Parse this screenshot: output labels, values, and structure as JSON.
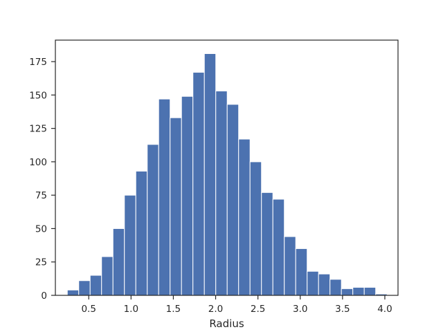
{
  "chart_data": {
    "type": "bar",
    "xlabel": "Radius",
    "ylabel": "",
    "title": "",
    "grid": false,
    "xlim": [
      0.1056,
      4.1557
    ],
    "ylim": [
      0,
      191.1
    ],
    "x_ticks": [
      0.5,
      1.0,
      1.5,
      2.0,
      2.5,
      3.0,
      3.5,
      4.0
    ],
    "x_tick_labels": [
      "0.5",
      "1.0",
      "1.5",
      "2.0",
      "2.5",
      "3.0",
      "3.5",
      "4.0"
    ],
    "y_ticks": [
      0,
      25,
      50,
      75,
      100,
      125,
      150,
      175
    ],
    "y_tick_labels": [
      "0",
      "25",
      "50",
      "75",
      "100",
      "125",
      "150",
      "175"
    ],
    "bar_color": "#4c72b0",
    "bins": [
      {
        "x0": 0.2466,
        "x1": 0.3816,
        "value": 4
      },
      {
        "x0": 0.3816,
        "x1": 0.5166,
        "value": 11
      },
      {
        "x0": 0.5166,
        "x1": 0.6516,
        "value": 15
      },
      {
        "x0": 0.6516,
        "x1": 0.7866,
        "value": 29
      },
      {
        "x0": 0.7866,
        "x1": 0.9216,
        "value": 50
      },
      {
        "x0": 0.9216,
        "x1": 1.0566,
        "value": 75
      },
      {
        "x0": 1.0566,
        "x1": 1.1916,
        "value": 93
      },
      {
        "x0": 1.1916,
        "x1": 1.3266,
        "value": 113
      },
      {
        "x0": 1.3266,
        "x1": 1.4616,
        "value": 147
      },
      {
        "x0": 1.4616,
        "x1": 1.5966,
        "value": 133
      },
      {
        "x0": 1.5966,
        "x1": 1.7316,
        "value": 149
      },
      {
        "x0": 1.7316,
        "x1": 1.8666,
        "value": 167
      },
      {
        "x0": 1.8666,
        "x1": 2.0016,
        "value": 181
      },
      {
        "x0": 2.0016,
        "x1": 2.1366,
        "value": 153
      },
      {
        "x0": 2.1366,
        "x1": 2.2716,
        "value": 143
      },
      {
        "x0": 2.2716,
        "x1": 2.4066,
        "value": 117
      },
      {
        "x0": 2.4066,
        "x1": 2.5416,
        "value": 100
      },
      {
        "x0": 2.5416,
        "x1": 2.6766,
        "value": 77
      },
      {
        "x0": 2.6766,
        "x1": 2.8116,
        "value": 72
      },
      {
        "x0": 2.8116,
        "x1": 2.9466,
        "value": 44
      },
      {
        "x0": 2.9466,
        "x1": 3.0816,
        "value": 35
      },
      {
        "x0": 3.0816,
        "x1": 3.2166,
        "value": 18
      },
      {
        "x0": 3.2166,
        "x1": 3.3516,
        "value": 16
      },
      {
        "x0": 3.3516,
        "x1": 3.4866,
        "value": 12
      },
      {
        "x0": 3.4866,
        "x1": 3.6216,
        "value": 5
      },
      {
        "x0": 3.6216,
        "x1": 3.7566,
        "value": 6
      },
      {
        "x0": 3.7566,
        "x1": 3.8916,
        "value": 6
      },
      {
        "x0": 3.8916,
        "x1": 4.0266,
        "value": 1
      }
    ]
  }
}
